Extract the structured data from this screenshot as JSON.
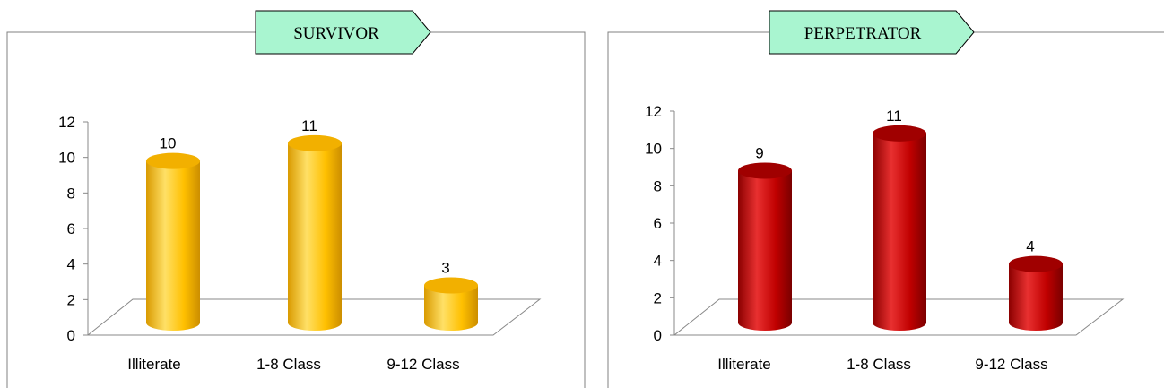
{
  "chart_data": [
    {
      "type": "bar",
      "title": "SURVIVOR",
      "categories": [
        "Illiterate",
        "1-8 Class",
        "9-12 Class"
      ],
      "values": [
        10,
        11,
        3
      ],
      "data_labels": [
        "10",
        "11",
        "3"
      ],
      "ylim": [
        0,
        12
      ],
      "yticks": [
        "0",
        "2",
        "4",
        "6",
        "8",
        "10",
        "12"
      ],
      "xlabel": "",
      "ylabel": "",
      "grid": false,
      "legend": "none",
      "style": "3d-cylinder",
      "colors": {
        "body": "#FFC000",
        "light": "#FFE066",
        "dark": "#D99A00",
        "top": "#F2B000"
      }
    },
    {
      "type": "bar",
      "title": "PERPETRATOR",
      "categories": [
        "Illiterate",
        "1-8 Class",
        "9-12 Class"
      ],
      "values": [
        9,
        11,
        4
      ],
      "data_labels": [
        "9",
        "11",
        "4"
      ],
      "ylim": [
        0,
        12
      ],
      "yticks": [
        "0",
        "2",
        "4",
        "6",
        "8",
        "10",
        "12"
      ],
      "xlabel": "",
      "ylabel": "",
      "grid": false,
      "legend": "none",
      "style": "3d-cylinder",
      "colors": {
        "body": "#C00000",
        "light": "#E83030",
        "dark": "#8B0000",
        "top": "#A00000"
      }
    }
  ],
  "title_banner_color": "#A9F5D0"
}
